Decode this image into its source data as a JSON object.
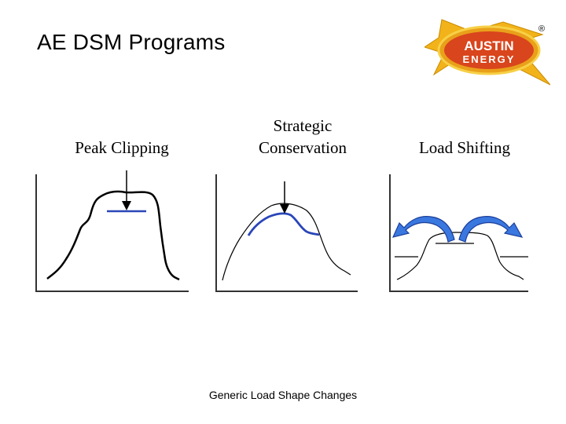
{
  "title": "AE DSM Programs",
  "panels": [
    {
      "label": "Peak Clipping"
    },
    {
      "label_line1": "Strategic",
      "label_line2": "Conservation"
    },
    {
      "label": "Load Shifting"
    }
  ],
  "caption": "Generic Load Shape Changes",
  "logo": {
    "line1": "AUSTIN",
    "line2": "ENERGY",
    "mark": "®"
  },
  "colors": {
    "accent_blue": "#2a46b8",
    "arrow_blue": "#3a78e0",
    "logo_gold": "#f2b31a",
    "logo_red": "#d9451c"
  }
}
